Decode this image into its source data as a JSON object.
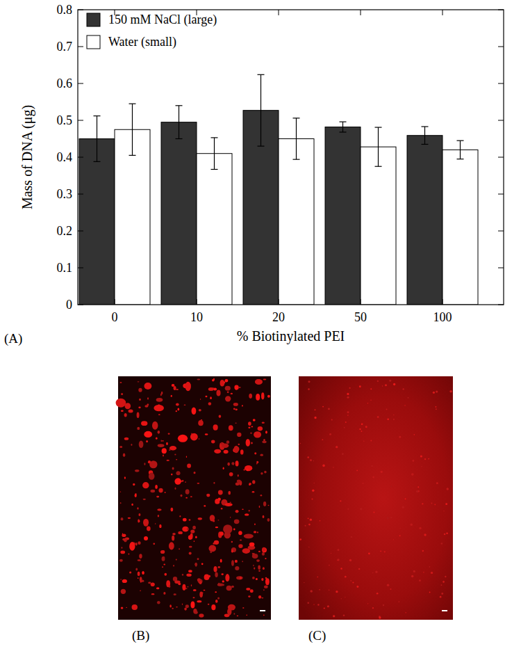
{
  "chart_data": {
    "type": "bar",
    "xlabel": "% Biotinylated PEI",
    "ylabel": "Mass of DNA (μg)",
    "categories": [
      "0",
      "10",
      "20",
      "50",
      "100"
    ],
    "series": [
      {
        "name": "150 mM NaCl (large)",
        "color": "#333333",
        "values": [
          0.45,
          0.495,
          0.527,
          0.482,
          0.459
        ],
        "errors": [
          0.062,
          0.045,
          0.097,
          0.014,
          0.024
        ]
      },
      {
        "name": "Water (small)",
        "color": "#ffffff",
        "values": [
          0.475,
          0.41,
          0.45,
          0.428,
          0.42
        ],
        "errors": [
          0.07,
          0.043,
          0.056,
          0.053,
          0.025
        ]
      }
    ],
    "ylim": [
      0,
      0.8
    ],
    "yticks": [
      0,
      0.1,
      0.2,
      0.3,
      0.4,
      0.5,
      0.6,
      0.7,
      0.8
    ],
    "legend": "upper-left"
  },
  "panels": {
    "a": "(A)",
    "b": "(B)",
    "c": "(C)"
  }
}
